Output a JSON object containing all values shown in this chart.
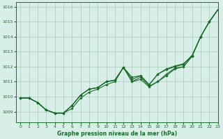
{
  "bg_color": "#d8efe8",
  "grid_color": "#aaccbb",
  "line_color": "#1a6b2a",
  "title": "Graphe pression niveau de la mer (hPa)",
  "xlim": [
    -0.5,
    23
  ],
  "ylim": [
    1008.3,
    1016.3
  ],
  "yticks": [
    1009,
    1010,
    1011,
    1012,
    1013,
    1014,
    1015,
    1016
  ],
  "xticks": [
    0,
    1,
    2,
    3,
    4,
    5,
    6,
    7,
    8,
    9,
    10,
    11,
    12,
    13,
    14,
    15,
    16,
    17,
    18,
    19,
    20,
    21,
    22,
    23
  ],
  "series": [
    [
      1009.9,
      1009.9,
      1009.6,
      1009.1,
      1008.9,
      1008.9,
      1009.2,
      1009.9,
      1010.3,
      1010.5,
      1010.8,
      1011.0,
      1011.95,
      1011.0,
      1011.3,
      1010.7,
      1011.0,
      1011.5,
      1011.9,
      1012.0,
      1012.7,
      1014.0,
      1015.0,
      1015.8
    ],
    [
      1009.9,
      1009.9,
      1009.6,
      1009.1,
      1008.9,
      1008.9,
      1009.4,
      1010.1,
      1010.5,
      1010.6,
      1011.0,
      1011.1,
      1011.95,
      1011.15,
      1011.4,
      1010.8,
      1011.5,
      1011.8,
      1012.0,
      1012.15,
      1012.75,
      1014.0,
      1015.0,
      1015.8
    ],
    [
      1009.9,
      1009.9,
      1009.6,
      1009.1,
      1008.9,
      1008.9,
      1009.4,
      1010.1,
      1010.5,
      1010.6,
      1011.0,
      1011.1,
      1011.95,
      1011.3,
      1011.4,
      1010.8,
      1011.5,
      1011.85,
      1012.05,
      1012.2,
      1012.75,
      1014.0,
      1015.0,
      1015.8
    ],
    [
      1009.9,
      1009.9,
      1009.6,
      1009.1,
      1008.9,
      1008.9,
      1009.4,
      1010.1,
      1010.5,
      1010.6,
      1011.0,
      1011.1,
      1011.95,
      1011.0,
      1011.15,
      1010.65,
      1011.0,
      1011.4,
      1011.85,
      1012.0,
      1012.7,
      1014.0,
      1015.0,
      1015.8
    ]
  ]
}
